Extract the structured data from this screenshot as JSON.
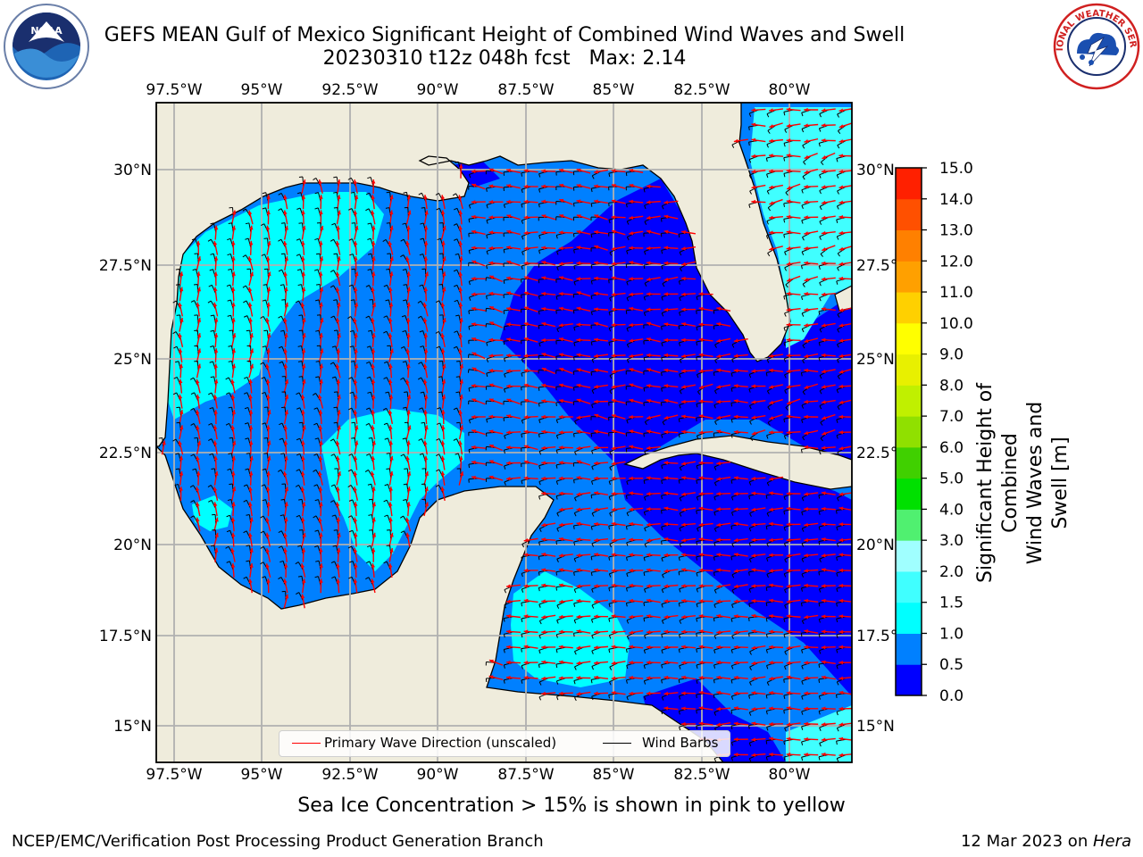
{
  "title": {
    "line1": "GEFS MEAN Gulf of Mexico Significant Height of Combined Wind Waves and Swell",
    "line2": "20230310 t12z 048h fcst   Max: 2.14"
  },
  "axes": {
    "lon_labels": [
      "97.5°W",
      "95°W",
      "92.5°W",
      "90°W",
      "87.5°W",
      "85°W",
      "82.5°W",
      "80°W"
    ],
    "lat_labels": [
      "30°N",
      "27.5°N",
      "25°N",
      "22.5°N",
      "20°N",
      "17.5°N",
      "15°N"
    ]
  },
  "legend": {
    "wave_label": "Primary Wave Direction (unscaled)",
    "wave_color": "#ff0000",
    "barb_label": "Wind Barbs",
    "barb_color": "#000000"
  },
  "colorbar": {
    "title_line1": "Significant Height of Combined",
    "title_line2": "Wind Waves and Swell [m]",
    "ticks": [
      "0.0",
      "0.5",
      "1.0",
      "1.5",
      "2.0",
      "3.0",
      "4.0",
      "5.0",
      "6.0",
      "7.0",
      "8.0",
      "9.0",
      "10.0",
      "11.0",
      "12.0",
      "13.0",
      "14.0",
      "15.0"
    ],
    "colors": [
      "#0000ff",
      "#0080ff",
      "#00ffff",
      "#40ffff",
      "#a0ffff",
      "#50f070",
      "#00e000",
      "#40d000",
      "#90e000",
      "#c0f000",
      "#e8f000",
      "#ffff00",
      "#ffd000",
      "#ffa000",
      "#ff8000",
      "#ff5000",
      "#ff2000"
    ]
  },
  "map_colors": {
    "land": "#efecdc",
    "level_0": "#0000ff",
    "level_05": "#0080ff",
    "level_10": "#00ffff",
    "level_15": "#40ffff",
    "grid": "#b0b0b0"
  },
  "note": "Sea Ice Concentration > 15% is shown in pink to yellow",
  "footer": {
    "left": "NCEP/EMC/Verification Post Processing Product Generation Branch",
    "right_date": "12 Mar 2023 on ",
    "right_host": "Hera"
  },
  "logos": {
    "noaa_text": "NOAA",
    "nws_text": "NATIONAL WEATHER SERVICE"
  }
}
